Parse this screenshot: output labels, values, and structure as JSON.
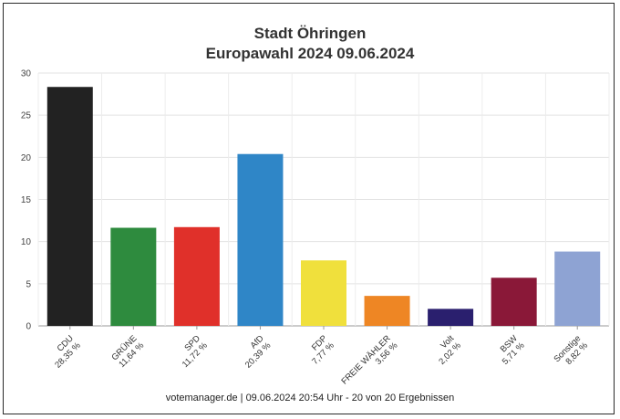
{
  "chart_data": {
    "type": "bar",
    "title": "Stadt Öhringen",
    "subtitle": "Europawahl 2024 09.06.2024",
    "categories": [
      "CDU",
      "GRÜNE",
      "SPD",
      "AfD",
      "FDP",
      "FREIE WÄHLER",
      "Volt",
      "BSW",
      "Sonstige"
    ],
    "value_labels": [
      "28,35 %",
      "11,64 %",
      "11,72 %",
      "20,39 %",
      "7,77 %",
      "3,56 %",
      "2,02 %",
      "5,71 %",
      "8,82 %"
    ],
    "values": [
      28.35,
      11.64,
      11.72,
      20.39,
      7.77,
      3.56,
      2.02,
      5.71,
      8.82
    ],
    "colors": [
      "#222222",
      "#2e8b3e",
      "#e0302a",
      "#2f86c7",
      "#f0e03c",
      "#ee8624",
      "#2a1f6e",
      "#8a1838",
      "#8ea3d3"
    ],
    "ylim": [
      0,
      30
    ],
    "yticks": [
      0,
      5,
      10,
      15,
      20,
      25,
      30
    ],
    "grid": true,
    "footer": "votemanager.de | 09.06.2024 20:54 Uhr - 20 von 20 Ergebnissen"
  }
}
